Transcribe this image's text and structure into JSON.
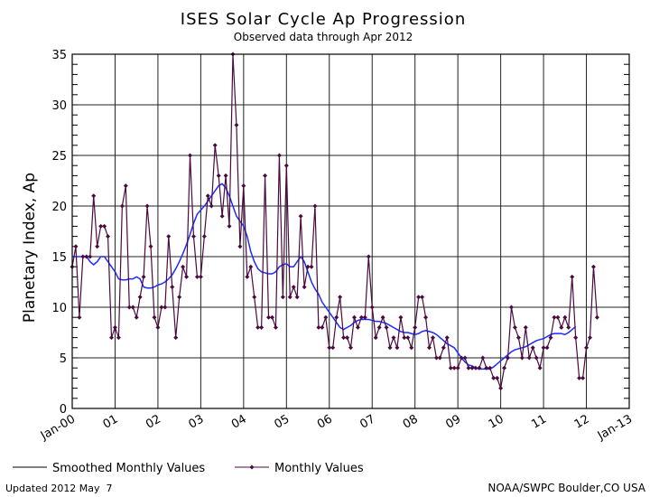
{
  "chart_data": {
    "type": "line",
    "title": "ISES Solar Cycle Ap Progression",
    "subtitle": "Observed data through Apr 2012",
    "ylabel": "Planetary Index, Ap",
    "xlabel": "",
    "ylim": [
      0,
      35
    ],
    "yticks": [
      0,
      5,
      10,
      15,
      20,
      25,
      30,
      35
    ],
    "xlim": [
      "2000-01",
      "2013-01"
    ],
    "xtick_labels": [
      "Jan-00",
      "01",
      "02",
      "03",
      "04",
      "05",
      "06",
      "07",
      "08",
      "09",
      "10",
      "11",
      "12",
      "Jan-13"
    ],
    "grid": true,
    "legend_placement": "bottom",
    "series": [
      {
        "name": "Smoothed Monthly Values",
        "color": "#1c2cff",
        "start": "2000-01",
        "values": [
          15,
          15,
          15,
          15,
          15,
          14.5,
          14.2,
          14.5,
          15,
          15,
          14.5,
          14,
          13.5,
          12.8,
          12.7,
          12.7,
          12.8,
          12.8,
          13,
          12.8,
          12,
          11.9,
          11.9,
          12,
          12.2,
          12.3,
          12.5,
          12.8,
          13.2,
          13.8,
          14.5,
          15.3,
          16.2,
          17.2,
          18.3,
          19.2,
          19.6,
          20,
          20.5,
          21,
          21.5,
          22,
          22.2,
          21.8,
          21,
          20,
          19,
          18.5,
          18,
          17,
          15.5,
          14.5,
          13.8,
          13.5,
          13.4,
          13.3,
          13.3,
          13.5,
          14,
          14.2,
          14.3,
          14,
          14,
          14.5,
          15,
          14.5,
          13.5,
          12.5,
          11.8,
          11.3,
          10.5,
          10,
          9.5,
          9,
          8.5,
          8,
          7.8,
          8,
          8.2,
          8.5,
          8.7,
          8.8,
          8.8,
          8.8,
          8.7,
          8.6,
          8.6,
          8.5,
          8.4,
          8.2,
          8,
          7.8,
          7.6,
          7.5,
          7.5,
          7.4,
          7.3,
          7.4,
          7.6,
          7.7,
          7.6,
          7.5,
          7.3,
          7,
          6.7,
          6.4,
          6.2,
          6,
          5.5,
          5,
          4.6,
          4.3,
          4.2,
          4,
          3.9,
          3.9,
          3.9,
          3.9,
          4.1,
          4.4,
          4.7,
          5,
          5.3,
          5.6,
          5.8,
          5.9,
          6,
          6.1,
          6.3,
          6.5,
          6.7,
          6.8,
          6.9,
          7.1,
          7.3,
          7.4,
          7.4,
          7.4,
          7.3,
          7.5,
          7.8,
          8.1
        ]
      },
      {
        "name": "Monthly Values",
        "color": "#4a0a40",
        "start": "2000-01",
        "values": [
          14,
          16,
          9,
          15,
          15,
          15,
          21,
          16,
          18,
          18,
          17,
          7,
          8,
          7,
          20,
          22,
          10,
          10,
          9,
          11,
          13,
          20,
          16,
          9,
          8,
          10,
          10,
          17,
          12,
          7,
          11,
          14,
          13,
          25,
          17,
          13,
          13,
          17,
          21,
          20,
          26,
          23,
          19,
          23,
          18,
          35,
          28,
          16,
          22,
          13,
          14,
          11,
          8,
          8,
          23,
          9,
          9,
          8,
          25,
          11,
          24,
          11,
          12,
          11,
          19,
          12,
          14,
          14,
          20,
          8,
          8,
          9,
          6,
          6,
          9,
          11,
          7,
          7,
          6,
          9,
          8,
          9,
          9,
          15,
          10,
          7,
          8,
          9,
          8,
          6,
          7,
          6,
          9,
          7,
          7,
          6,
          8,
          11,
          11,
          9,
          6,
          7,
          5,
          5,
          6,
          7,
          4,
          4,
          4,
          5,
          5,
          4,
          4,
          4,
          4,
          5,
          4,
          4,
          3,
          3,
          2,
          4,
          5,
          10,
          8,
          7,
          5,
          8,
          5,
          6,
          5,
          4,
          6,
          6,
          7,
          9,
          9,
          8,
          9,
          8,
          13,
          7,
          3,
          3,
          6,
          7,
          14,
          9
        ]
      }
    ]
  },
  "legend": {
    "smoothed_label": "Smoothed Monthly Values",
    "monthly_label": "Monthly Values"
  },
  "footer": {
    "updated": "Updated 2012 May  7",
    "credit": "NOAA/SWPC Boulder,CO USA",
    "credit_color": "#1c2cff"
  }
}
